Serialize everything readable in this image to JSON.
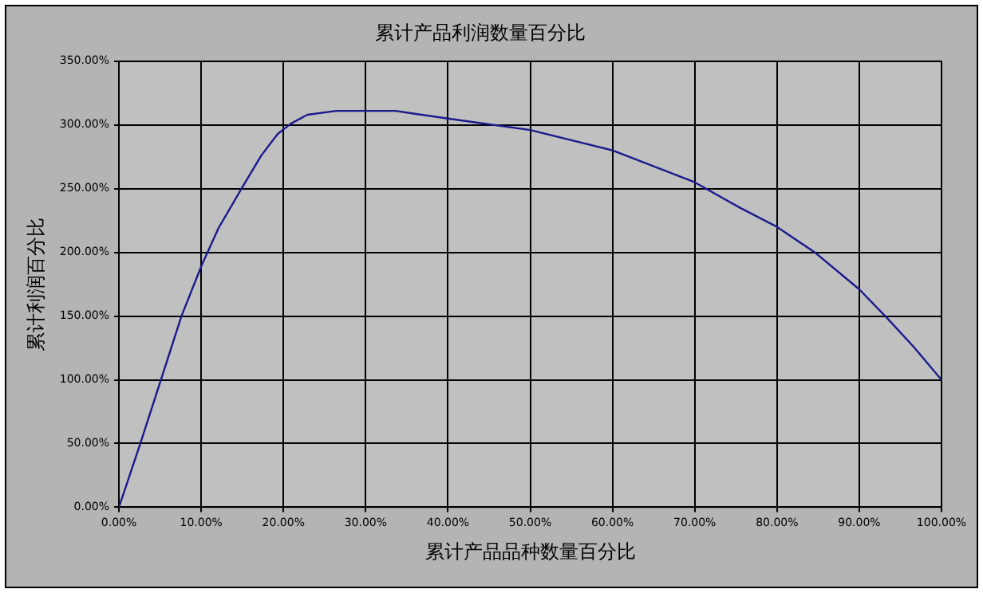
{
  "chart_data": {
    "type": "line",
    "title": "累计产品利润数量百分比",
    "xlabel": "累计产品品种数量百分比",
    "ylabel": "累计利润百分比",
    "x": [
      0,
      2.6,
      5.1,
      7.6,
      10,
      12.1,
      14.9,
      17.3,
      19.3,
      20.9,
      22.9,
      26.4,
      33.6,
      40,
      50,
      60,
      70,
      75.5,
      80,
      84.6,
      90,
      93.3,
      96.6,
      100
    ],
    "series": [
      {
        "color": "#1a1a8c",
        "values": [
          0,
          50,
          100,
          150,
          189,
          219,
          250,
          276,
          293,
          301,
          308,
          311,
          311,
          305,
          296,
          280,
          255,
          235,
          220,
          200,
          171,
          149,
          126,
          100
        ]
      }
    ],
    "xlim": [
      0,
      100
    ],
    "ylim": [
      0,
      350
    ],
    "xticks": [
      {
        "value": 0,
        "label": "0.00%"
      },
      {
        "value": 10,
        "label": "10.00%"
      },
      {
        "value": 20,
        "label": "20.00%"
      },
      {
        "value": 30,
        "label": "30.00%"
      },
      {
        "value": 40,
        "label": "40.00%"
      },
      {
        "value": 50,
        "label": "50.00%"
      },
      {
        "value": 60,
        "label": "60.00%"
      },
      {
        "value": 70,
        "label": "70.00%"
      },
      {
        "value": 80,
        "label": "80.00%"
      },
      {
        "value": 90,
        "label": "90.00%"
      },
      {
        "value": 100,
        "label": "100.00%"
      }
    ],
    "yticks": [
      {
        "value": 0,
        "label": "0.00%"
      },
      {
        "value": 50,
        "label": "50.00%"
      },
      {
        "value": 100,
        "label": "100.00%"
      },
      {
        "value": 150,
        "label": "150.00%"
      },
      {
        "value": 200,
        "label": "200.00%"
      },
      {
        "value": 250,
        "label": "250.00%"
      },
      {
        "value": 300,
        "label": "300.00%"
      },
      {
        "value": 350,
        "label": "350.00%"
      }
    ],
    "grid": true,
    "legend": false,
    "marker": "none",
    "line_style": "solid"
  }
}
